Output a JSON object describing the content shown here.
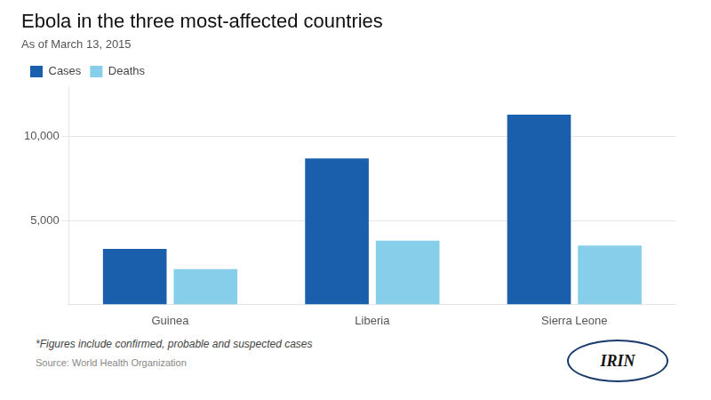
{
  "chart_data": {
    "type": "bar",
    "title": "Ebola in the three most-affected countries",
    "subtitle": "As of March 13, 2015",
    "footnote": "*Figures include confirmed, probable and suspected cases",
    "source": "Source: World Health Organization",
    "annotations": [
      "IRIN"
    ],
    "categories": [
      "Guinea",
      "Liberia",
      "Sierra Leone"
    ],
    "series": [
      {
        "name": "Cases",
        "color": "#1A5FAB",
        "values": [
          3300,
          8700,
          11300
        ]
      },
      {
        "name": "Deaths",
        "color": "#87CEEB",
        "values": [
          2100,
          3800,
          3500
        ]
      }
    ],
    "ylim": [
      0,
      13000
    ],
    "yticks": [
      {
        "value": 5000,
        "label": "5,000"
      },
      {
        "value": 10000,
        "label": "10,000"
      }
    ],
    "grid": true,
    "legend": "upper left"
  }
}
